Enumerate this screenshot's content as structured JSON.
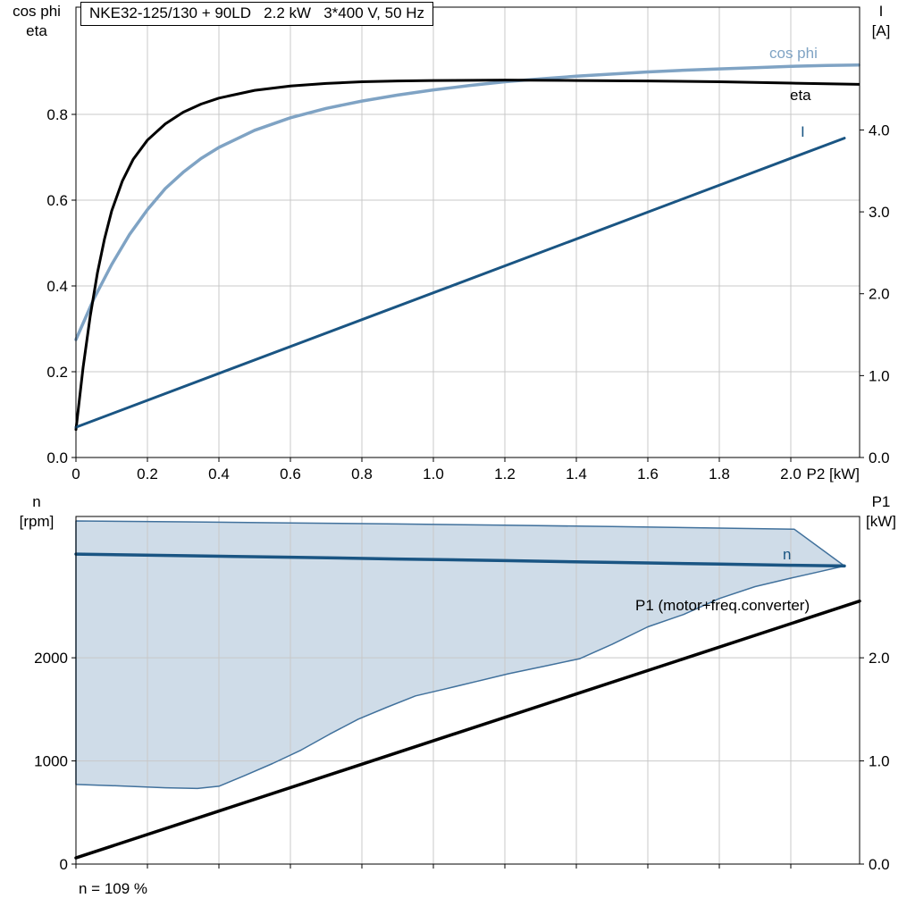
{
  "title_box": "NKE32-125/130 + 90LD   2.2 kW   3*400 V, 50 Hz",
  "colors": {
    "grid": "#c8c8c8",
    "frame": "#000000",
    "cos_phi": "#7fa3c4",
    "eta": "#000000",
    "current": "#1a5583",
    "speed": "#1a5583",
    "p1": "#000000",
    "area_fill": "#cfdce8",
    "area_edge": "#41719c"
  },
  "top_chart": {
    "axis_corner_left": [
      "cos phi",
      "eta"
    ],
    "axis_corner_right": [
      "I",
      "[A]"
    ],
    "labels": {
      "cos_phi": "cos phi",
      "eta": "eta",
      "current": "I"
    }
  },
  "bottom_chart": {
    "axis_corner_left": [
      "n",
      "[rpm]"
    ],
    "axis_corner_right": [
      "P1",
      "[kW]"
    ],
    "labels": {
      "speed": "n",
      "p1": "P1 (motor+freq.converter)"
    },
    "footnote": "n = 109 %"
  },
  "chart_data": [
    {
      "id": "top",
      "type": "line",
      "title": "NKE32-125/130 + 90LD  2.2 kW  3*400 V, 50 Hz",
      "xlabel": "P2 [kW]",
      "x_range": [
        0,
        2.1925
      ],
      "x_tick_values": [
        0,
        0.2,
        0.4,
        0.6,
        0.8,
        1.0,
        1.2,
        1.4,
        1.6,
        1.8,
        2.0
      ],
      "x_tick_labels": [
        "0",
        "0.2",
        "0.4",
        "0.6",
        "0.8",
        "1.0",
        "1.2",
        "1.4",
        "1.6",
        "1.8",
        "2.0"
      ],
      "y_left": {
        "label": "cos phi / eta",
        "range": [
          0,
          1.05
        ],
        "tick_values": [
          0,
          0.2,
          0.4,
          0.6,
          0.8
        ],
        "tick_labels": [
          "0.0",
          "0.2",
          "0.4",
          "0.6",
          "0.8"
        ]
      },
      "y_right": {
        "label": "I [A]",
        "range": [
          0,
          5.5
        ],
        "tick_values": [
          0,
          1,
          2,
          3,
          4
        ],
        "tick_labels": [
          "0.0",
          "1.0",
          "2.0",
          "3.0",
          "4.0"
        ]
      },
      "grid": true,
      "legend_position": "curve-end-labels",
      "series": [
        {
          "id": "cos-phi",
          "name": "cos phi",
          "axis": "left",
          "color": "#7fa3c4",
          "width": 3.5,
          "points": [
            [
              0,
              0.275
            ],
            [
              0.05,
              0.37
            ],
            [
              0.1,
              0.45
            ],
            [
              0.15,
              0.52
            ],
            [
              0.2,
              0.578
            ],
            [
              0.25,
              0.627
            ],
            [
              0.3,
              0.665
            ],
            [
              0.35,
              0.697
            ],
            [
              0.4,
              0.723
            ],
            [
              0.5,
              0.763
            ],
            [
              0.6,
              0.792
            ],
            [
              0.7,
              0.814
            ],
            [
              0.8,
              0.831
            ],
            [
              0.9,
              0.845
            ],
            [
              1.0,
              0.857
            ],
            [
              1.1,
              0.867
            ],
            [
              1.2,
              0.876
            ],
            [
              1.3,
              0.883
            ],
            [
              1.4,
              0.889
            ],
            [
              1.5,
              0.894
            ],
            [
              1.6,
              0.899
            ],
            [
              1.7,
              0.903
            ],
            [
              1.8,
              0.906
            ],
            [
              1.9,
              0.909
            ],
            [
              2.0,
              0.912
            ],
            [
              2.1,
              0.914
            ],
            [
              2.19,
              0.915
            ]
          ]
        },
        {
          "id": "eta",
          "name": "eta",
          "axis": "left",
          "color": "#000000",
          "width": 3,
          "points": [
            [
              0,
              0.065
            ],
            [
              0.02,
              0.21
            ],
            [
              0.04,
              0.33
            ],
            [
              0.06,
              0.43
            ],
            [
              0.08,
              0.51
            ],
            [
              0.1,
              0.575
            ],
            [
              0.13,
              0.645
            ],
            [
              0.16,
              0.695
            ],
            [
              0.2,
              0.74
            ],
            [
              0.25,
              0.778
            ],
            [
              0.3,
              0.805
            ],
            [
              0.35,
              0.824
            ],
            [
              0.4,
              0.838
            ],
            [
              0.5,
              0.856
            ],
            [
              0.6,
              0.866
            ],
            [
              0.7,
              0.872
            ],
            [
              0.8,
              0.876
            ],
            [
              0.9,
              0.878
            ],
            [
              1.0,
              0.879
            ],
            [
              1.2,
              0.88
            ],
            [
              1.4,
              0.879
            ],
            [
              1.6,
              0.878
            ],
            [
              1.8,
              0.876
            ],
            [
              2.0,
              0.873
            ],
            [
              2.19,
              0.87
            ]
          ]
        },
        {
          "id": "current",
          "name": "I",
          "axis": "right",
          "color": "#1a5583",
          "width": 3,
          "points": [
            [
              0,
              0.37
            ],
            [
              2.15,
              3.9
            ]
          ]
        }
      ]
    },
    {
      "id": "bottom",
      "type": "line+area",
      "xlabel": "",
      "x_range": [
        0,
        2.1925
      ],
      "x_tick_values": [
        0,
        0.2,
        0.4,
        0.6,
        0.8,
        1.0,
        1.2,
        1.4,
        1.6,
        1.8,
        2.0
      ],
      "x_tick_labels": [],
      "y_left": {
        "label": "n [rpm]",
        "range": [
          0,
          3370
        ],
        "tick_values": [
          0,
          1000,
          2000
        ],
        "tick_labels": [
          "0",
          "1000",
          "2000"
        ]
      },
      "y_right": {
        "label": "P1 [kW]",
        "range": [
          0,
          3.37
        ],
        "tick_values": [
          0,
          1,
          2
        ],
        "tick_labels": [
          "0.0",
          "1.0",
          "2.0"
        ]
      },
      "grid": true,
      "footnote": "n = 109 %",
      "area": {
        "name": "speed-control-range",
        "fill": "#cfdce8",
        "edge": "#41719c",
        "upper": [
          [
            0,
            3327
          ],
          [
            0.3,
            3318
          ],
          [
            0.6,
            3308
          ],
          [
            0.9,
            3297
          ],
          [
            1.2,
            3285
          ],
          [
            1.5,
            3272
          ],
          [
            1.8,
            3257
          ],
          [
            2.01,
            3246
          ]
        ],
        "lower": [
          [
            0,
            772
          ],
          [
            0.12,
            758
          ],
          [
            0.25,
            740
          ],
          [
            0.34,
            733
          ],
          [
            0.4,
            755
          ],
          [
            0.47,
            855
          ],
          [
            0.55,
            975
          ],
          [
            0.63,
            1105
          ],
          [
            0.71,
            1260
          ],
          [
            0.79,
            1405
          ],
          [
            0.87,
            1520
          ],
          [
            0.95,
            1630
          ],
          [
            1.03,
            1695
          ],
          [
            1.12,
            1770
          ],
          [
            1.21,
            1845
          ],
          [
            1.31,
            1918
          ],
          [
            1.41,
            1992
          ],
          [
            1.5,
            2130
          ],
          [
            1.6,
            2300
          ],
          [
            1.7,
            2420
          ],
          [
            1.8,
            2575
          ],
          [
            1.9,
            2690
          ],
          [
            2.0,
            2772
          ],
          [
            2.08,
            2835
          ],
          [
            2.15,
            2890
          ]
        ]
      },
      "series": [
        {
          "id": "speed",
          "name": "n",
          "axis": "left",
          "color": "#1a5583",
          "width": 3.5,
          "points": [
            [
              0,
              3005
            ],
            [
              0.3,
              2990
            ],
            [
              0.6,
              2975
            ],
            [
              0.9,
              2958
            ],
            [
              1.2,
              2942
            ],
            [
              1.5,
              2925
            ],
            [
              1.8,
              2908
            ],
            [
              2.0,
              2897
            ],
            [
              2.15,
              2890
            ]
          ]
        },
        {
          "id": "p1",
          "name": "P1 (motor+freq.converter)",
          "axis": "right",
          "color": "#000000",
          "width": 3.5,
          "points": [
            [
              0,
              0.06
            ],
            [
              2.1925,
              2.55
            ]
          ]
        }
      ]
    }
  ]
}
